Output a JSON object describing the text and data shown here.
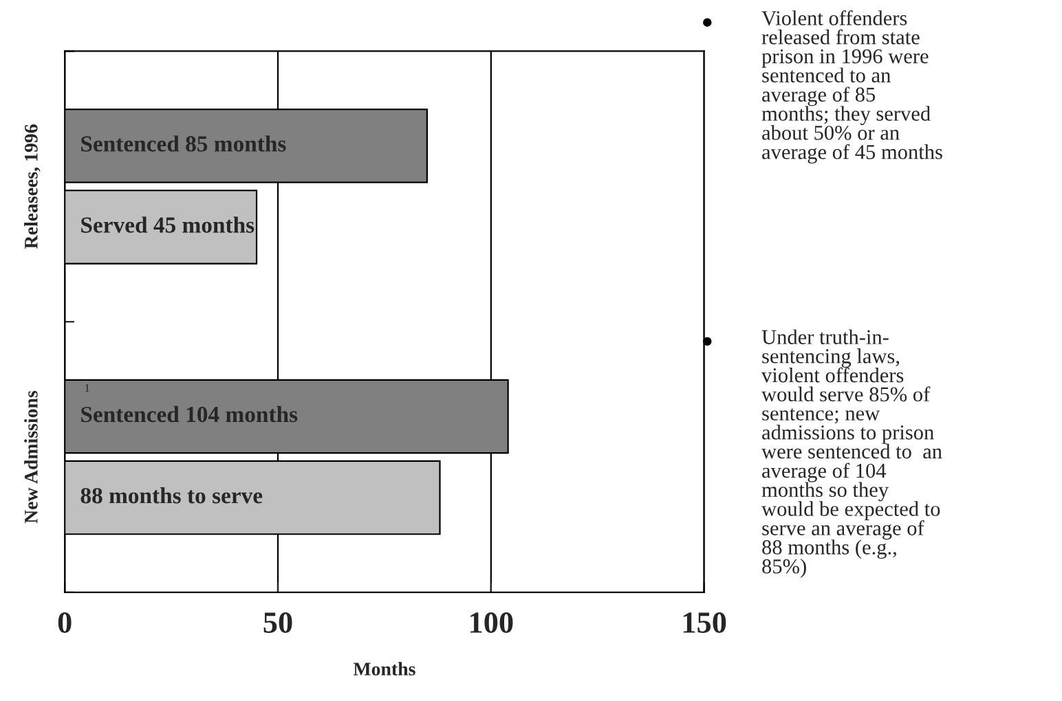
{
  "chart_data": {
    "type": "bar",
    "orientation": "horizontal",
    "xlabel": "Months",
    "categories": [
      "Releasees, 1996",
      "New Admissions"
    ],
    "series": [
      {
        "color": "#808080",
        "values": [
          85,
          104
        ],
        "value_labels": [
          "Sentenced 85 months",
          "Sentenced 104 months"
        ]
      },
      {
        "color": "#c0c0c0",
        "values": [
          45,
          88
        ],
        "value_labels": [
          "Served 45 months",
          "88 months to serve"
        ]
      }
    ],
    "xlim": [
      0,
      150
    ],
    "xticks": [
      0,
      50,
      100,
      150
    ],
    "grid": "x",
    "annotations": [
      "1",
      "Violent offenders\nreleased from state\nprison in 1996 were\nsentenced to an\naverage of 85\nmonths; they served\nabout 50% or an\naverage of 45 months",
      "Under truth-in-\nsentencing laws,\nviolent offenders\nwould serve 85% of\nsentence; new\nadmissions to prison\nwere sentenced to  an\naverage of 104\nmonths so they\nwould be expected to\nserve an average of\n88 months (e.g.,\n85%)"
    ]
  }
}
